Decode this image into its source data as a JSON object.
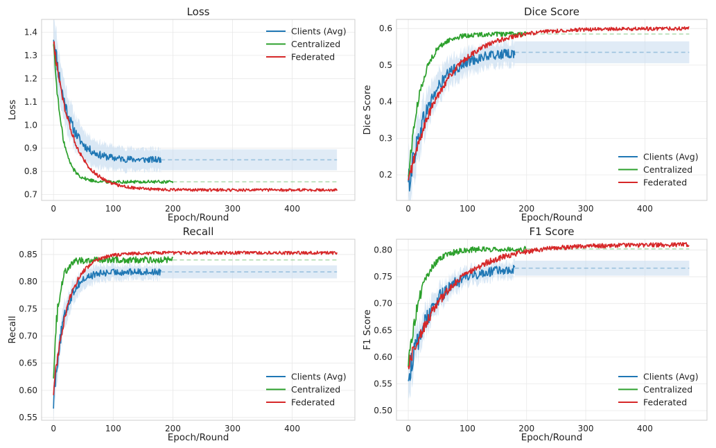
{
  "figure": {
    "legend_labels": [
      "Clients (Avg)",
      "Centralized",
      "Federated"
    ]
  },
  "colors": {
    "clients": "#1f77b4",
    "centralized": "#2ca02c",
    "federated": "#d62728",
    "band": "#c6dbef",
    "grid": "#e8e8e8",
    "frame": "#cccccc"
  },
  "chart_data": [
    {
      "type": "line",
      "title": "Loss",
      "xlabel": "Epoch/Round",
      "ylabel": "Loss",
      "xlim": [
        -20,
        505
      ],
      "ylim": [
        0.675,
        1.455
      ],
      "xticks": [
        0,
        100,
        200,
        300,
        400
      ],
      "yticks": [
        0.7,
        0.8,
        0.9,
        1.0,
        1.1,
        1.2,
        1.3,
        1.4
      ],
      "ytick_labels": [
        "0.7",
        "0.8",
        "0.9",
        "1.0",
        "1.1",
        "1.2",
        "1.3",
        "1.4"
      ],
      "legend_position": "upper right",
      "series": [
        {
          "name": "Clients (Avg)",
          "key": "clients",
          "start": 1.39,
          "end": 0.85,
          "tau": 24,
          "noise": 0.014,
          "last_x": 180,
          "extend_to": 475,
          "band": 0.045
        },
        {
          "name": "Centralized",
          "key": "centralized",
          "start": 1.36,
          "end": 0.755,
          "tau": 14,
          "noise": 0.007,
          "last_x": 200,
          "extend_to": 475,
          "band": 0
        },
        {
          "name": "Federated",
          "key": "federated",
          "start": 1.36,
          "end": 0.72,
          "tau": 32,
          "noise": 0.006,
          "last_x": 475,
          "extend_to": 475,
          "band": 0
        }
      ]
    },
    {
      "type": "line",
      "title": "Dice Score",
      "xlabel": "Epoch/Round",
      "ylabel": "Dice Score",
      "xlim": [
        -20,
        505
      ],
      "ylim": [
        0.13,
        0.625
      ],
      "xticks": [
        0,
        100,
        200,
        300,
        400
      ],
      "yticks": [
        0.2,
        0.3,
        0.4,
        0.5,
        0.6
      ],
      "ytick_labels": [
        "0.2",
        "0.3",
        "0.4",
        "0.5",
        "0.6"
      ],
      "legend_position": "lower right",
      "series": [
        {
          "name": "Clients (Avg)",
          "key": "clients",
          "start": 0.17,
          "end": 0.535,
          "tau": 38,
          "noise": 0.012,
          "last_x": 180,
          "extend_to": 475,
          "band": 0.03
        },
        {
          "name": "Centralized",
          "key": "centralized",
          "start": 0.19,
          "end": 0.585,
          "tau": 22,
          "noise": 0.006,
          "last_x": 200,
          "extend_to": 475,
          "band": 0
        },
        {
          "name": "Federated",
          "key": "federated",
          "start": 0.18,
          "end": 0.6,
          "tau": 60,
          "noise": 0.005,
          "last_x": 475,
          "extend_to": 475,
          "band": 0
        }
      ]
    },
    {
      "type": "line",
      "title": "Recall",
      "xlabel": "Epoch/Round",
      "ylabel": "Recall",
      "xlim": [
        -20,
        505
      ],
      "ylim": [
        0.545,
        0.878
      ],
      "xticks": [
        0,
        100,
        200,
        300,
        400
      ],
      "yticks": [
        0.55,
        0.6,
        0.65,
        0.7,
        0.75,
        0.8,
        0.85
      ],
      "ytick_labels": [
        "0.55",
        "0.60",
        "0.65",
        "0.70",
        "0.75",
        "0.80",
        "0.85"
      ],
      "legend_position": "lower right",
      "series": [
        {
          "name": "Clients (Avg)",
          "key": "clients",
          "start": 0.585,
          "end": 0.818,
          "tau": 18,
          "noise": 0.006,
          "last_x": 180,
          "extend_to": 475,
          "band": 0.012
        },
        {
          "name": "Centralized",
          "key": "centralized",
          "start": 0.64,
          "end": 0.84,
          "tau": 9,
          "noise": 0.006,
          "last_x": 200,
          "extend_to": 475,
          "band": 0
        },
        {
          "name": "Federated",
          "key": "federated",
          "start": 0.6,
          "end": 0.853,
          "tau": 25,
          "noise": 0.003,
          "last_x": 475,
          "extend_to": 475,
          "band": 0
        }
      ]
    },
    {
      "type": "line",
      "title": "F1 Score",
      "xlabel": "Epoch/Round",
      "ylabel": "F1 Score",
      "xlim": [
        -20,
        505
      ],
      "ylim": [
        0.482,
        0.82
      ],
      "xticks": [
        0,
        100,
        200,
        300,
        400
      ],
      "yticks": [
        0.5,
        0.55,
        0.6,
        0.65,
        0.7,
        0.75,
        0.8
      ],
      "ytick_labels": [
        "0.50",
        "0.55",
        "0.60",
        "0.65",
        "0.70",
        "0.75",
        "0.80"
      ],
      "legend_position": "lower right",
      "series": [
        {
          "name": "Clients (Avg)",
          "key": "clients",
          "start": 0.56,
          "end": 0.766,
          "tau": 40,
          "noise": 0.008,
          "last_x": 180,
          "extend_to": 475,
          "band": 0.014
        },
        {
          "name": "Centralized",
          "key": "centralized",
          "start": 0.585,
          "end": 0.802,
          "tau": 22,
          "noise": 0.005,
          "last_x": 200,
          "extend_to": 475,
          "band": 0
        },
        {
          "name": "Federated",
          "key": "federated",
          "start": 0.585,
          "end": 0.81,
          "tau": 70,
          "noise": 0.004,
          "last_x": 475,
          "extend_to": 475,
          "band": 0
        }
      ]
    }
  ]
}
